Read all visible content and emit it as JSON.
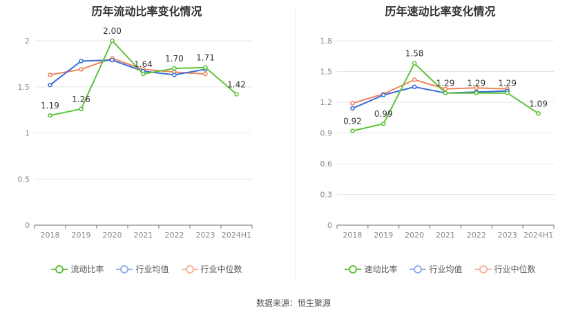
{
  "source": "数据来源：恒生聚源",
  "chart_data": [
    {
      "type": "line",
      "title": "历年流动比率变化情况",
      "categories": [
        "2018",
        "2019",
        "2020",
        "2021",
        "2022",
        "2023",
        "2024H1"
      ],
      "y_ticks": [
        "0",
        "0.5",
        "1",
        "1.5",
        "2"
      ],
      "ylim": [
        0,
        2.0
      ],
      "grid": true,
      "legend_position": "bottom",
      "series": [
        {
          "name": "流动比率",
          "color": "#5ec23b",
          "values": [
            1.19,
            1.26,
            2.0,
            1.64,
            1.7,
            1.71,
            1.42
          ],
          "labels": [
            "1.19",
            "1.26",
            "2.00",
            "1.64",
            "1.70",
            "1.71",
            "1.42"
          ]
        },
        {
          "name": "行业均值",
          "color": "#3a6fd8",
          "values": [
            1.52,
            1.78,
            1.79,
            1.67,
            1.63,
            1.69,
            null
          ]
        },
        {
          "name": "行业中位数",
          "color": "#f0855c",
          "values": [
            1.63,
            1.69,
            1.81,
            1.69,
            1.66,
            1.64,
            null
          ]
        }
      ]
    },
    {
      "type": "line",
      "title": "历年速动比率变化情况",
      "categories": [
        "2018",
        "2019",
        "2020",
        "2021",
        "2022",
        "2023",
        "2024H1"
      ],
      "y_ticks": [
        "0",
        "0.3",
        "0.6",
        "0.9",
        "1.2",
        "1.5",
        "1.8"
      ],
      "ylim": [
        0,
        1.8
      ],
      "grid": true,
      "legend_position": "bottom",
      "series": [
        {
          "name": "速动比率",
          "color": "#5ec23b",
          "values": [
            0.92,
            0.99,
            1.58,
            1.29,
            1.29,
            1.29,
            1.09
          ],
          "labels": [
            "0.92",
            "0.99",
            "1.58",
            "1.29",
            "1.29",
            "1.29",
            "1.09"
          ]
        },
        {
          "name": "行业均值",
          "color": "#3a6fd8",
          "values": [
            1.14,
            1.27,
            1.35,
            1.29,
            1.3,
            1.31,
            null
          ]
        },
        {
          "name": "行业中位数",
          "color": "#f0855c",
          "values": [
            1.19,
            1.28,
            1.42,
            1.33,
            1.34,
            1.33,
            null
          ]
        }
      ]
    }
  ]
}
